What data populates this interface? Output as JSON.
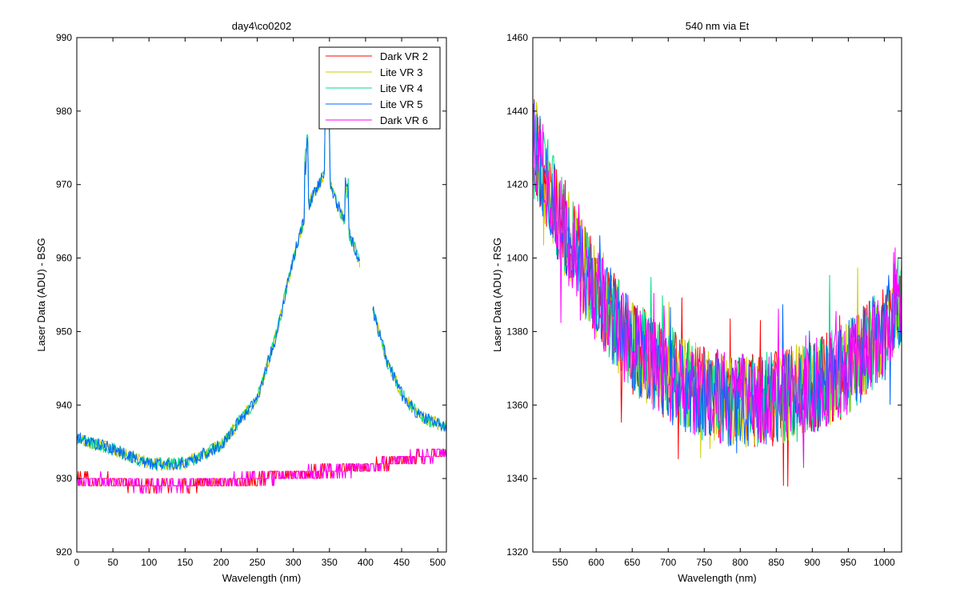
{
  "chart_data": [
    {
      "type": "line",
      "title": "day4\\co0202",
      "xlabel": "Wavelength (nm)",
      "ylabel": "Laser Data (ADU) - BSG",
      "xlim": [
        0,
        512
      ],
      "ylim": [
        920,
        990
      ],
      "xticks": [
        0,
        50,
        100,
        150,
        200,
        250,
        300,
        350,
        400,
        450,
        500
      ],
      "yticks": [
        920,
        930,
        940,
        950,
        960,
        970,
        980,
        990
      ],
      "legend": {
        "placement": "top-right"
      },
      "grid": false,
      "series": [
        {
          "name": "Dark VR 2",
          "color": "#ff0000",
          "kind": "dark",
          "x": [
            0,
            50,
            100,
            150,
            200,
            250,
            300,
            350,
            400,
            450,
            512
          ],
          "y": [
            930,
            929.6,
            929,
            929.2,
            929.5,
            930,
            930.5,
            931,
            931.5,
            932.5,
            933.5
          ]
        },
        {
          "name": "Lite VR 3",
          "color": "#cccc00",
          "kind": "lite",
          "x": [
            0,
            50,
            100,
            150,
            200,
            250,
            275,
            300,
            320,
            335,
            345,
            360,
            375,
            390,
            410,
            430,
            450,
            475,
            512
          ],
          "y": [
            935.5,
            934,
            932,
            932,
            934.5,
            941,
            949,
            960,
            967,
            970,
            972,
            967.5,
            964,
            960,
            953,
            946,
            941.5,
            938.5,
            937
          ]
        },
        {
          "name": "Lite VR 4",
          "color": "#00dd88",
          "kind": "lite",
          "x": [
            0,
            50,
            100,
            150,
            200,
            250,
            275,
            300,
            320,
            335,
            345,
            360,
            375,
            390,
            410,
            430,
            450,
            475,
            512
          ],
          "y": [
            935.5,
            934,
            932,
            932,
            934.5,
            941,
            949,
            960,
            967,
            970,
            972,
            967.5,
            964,
            960,
            953,
            946,
            941.5,
            938.5,
            937
          ]
        },
        {
          "name": "Lite VR 5",
          "color": "#0066ff",
          "kind": "lite",
          "x": [
            0,
            50,
            100,
            150,
            200,
            250,
            275,
            300,
            320,
            335,
            345,
            360,
            375,
            390,
            410,
            430,
            450,
            475,
            512
          ],
          "y": [
            935.5,
            934,
            932,
            932,
            934.5,
            941,
            949,
            960,
            967,
            970,
            972,
            967.5,
            964,
            960,
            953,
            946,
            941.5,
            938.5,
            937
          ]
        },
        {
          "name": "Dark VR 6",
          "color": "#ff00ff",
          "kind": "dark",
          "x": [
            0,
            50,
            100,
            150,
            200,
            250,
            300,
            350,
            400,
            450,
            512
          ],
          "y": [
            930,
            929.6,
            929,
            929.2,
            929.5,
            930,
            930.5,
            931,
            931.5,
            932.5,
            933.5
          ]
        }
      ]
    },
    {
      "type": "line",
      "title": "540 nm via Et",
      "xlabel": "Wavelength (nm)",
      "ylabel": "Laser Data (ADU) - RSG",
      "xlim": [
        512,
        1024
      ],
      "ylim": [
        1320,
        1460
      ],
      "xticks": [
        550,
        600,
        650,
        700,
        750,
        800,
        850,
        900,
        950,
        1000
      ],
      "yticks": [
        1320,
        1340,
        1360,
        1380,
        1400,
        1420,
        1440,
        1460
      ],
      "grid": false,
      "series": [
        {
          "name": "",
          "color": "#ff0000",
          "x": [
            512,
            550,
            600,
            650,
            700,
            750,
            800,
            850,
            900,
            950,
            1000,
            1024
          ],
          "y": [
            1432,
            1410,
            1390,
            1376,
            1368,
            1363,
            1361,
            1362,
            1365,
            1370,
            1380,
            1390
          ]
        },
        {
          "name": "",
          "color": "#cccc00",
          "x": [
            512,
            550,
            600,
            650,
            700,
            750,
            800,
            850,
            900,
            950,
            1000,
            1024
          ],
          "y": [
            1432,
            1410,
            1390,
            1376,
            1368,
            1363,
            1361,
            1362,
            1365,
            1370,
            1380,
            1390
          ]
        },
        {
          "name": "",
          "color": "#00dd88",
          "x": [
            512,
            550,
            600,
            650,
            700,
            750,
            800,
            850,
            900,
            950,
            1000,
            1024
          ],
          "y": [
            1432,
            1410,
            1390,
            1376,
            1368,
            1363,
            1361,
            1362,
            1365,
            1370,
            1380,
            1390
          ]
        },
        {
          "name": "",
          "color": "#0066ff",
          "x": [
            512,
            550,
            600,
            650,
            700,
            750,
            800,
            850,
            900,
            950,
            1000,
            1024
          ],
          "y": [
            1432,
            1410,
            1390,
            1376,
            1368,
            1363,
            1361,
            1362,
            1365,
            1370,
            1380,
            1390
          ]
        },
        {
          "name": "",
          "color": "#ff00ff",
          "x": [
            512,
            550,
            600,
            650,
            700,
            750,
            800,
            850,
            900,
            950,
            1000,
            1024
          ],
          "y": [
            1432,
            1410,
            1390,
            1376,
            1368,
            1363,
            1361,
            1362,
            1365,
            1370,
            1380,
            1390
          ]
        }
      ]
    }
  ]
}
